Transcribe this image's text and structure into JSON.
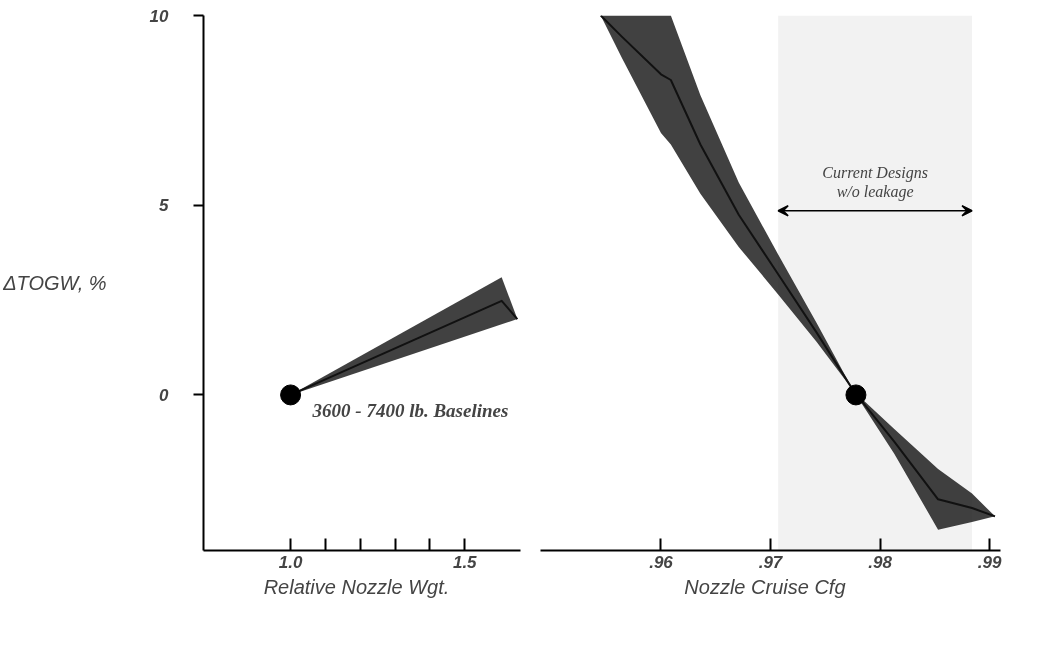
{
  "chart_data": [
    {
      "type": "line",
      "ylabel": "ΔTOGW, %",
      "xlabel": "Relative  Nozzle  Wgt.",
      "xlim": [
        0.75,
        1.66
      ],
      "ylim": [
        -4.1,
        10
      ],
      "yticks": [
        0,
        5,
        10
      ],
      "xticks": [
        {
          "value": 1.0,
          "label": "1.0"
        },
        {
          "value": 1.1,
          "label": null
        },
        {
          "value": 1.2,
          "label": null
        },
        {
          "value": 1.3,
          "label": null
        },
        {
          "value": 1.4,
          "label": null
        },
        {
          "value": 1.5,
          "label": "1.5"
        }
      ],
      "grid": false,
      "series": [
        {
          "color": "#111111",
          "x": [
            1.0,
            1.606,
            1.651
          ],
          "values": [
            0,
            2.48,
            2.0
          ],
          "lower": [
            0,
            1.86,
            2.0
          ],
          "upper": [
            0,
            3.1,
            2.0
          ]
        },
        {
          "type": "scatter",
          "marker": "circle",
          "color": "#000000",
          "x": [
            1.0
          ],
          "values": [
            0
          ]
        }
      ],
      "annotations": [
        {
          "text": "3600 - 7400 lb.  Baselines",
          "x": 1.0,
          "y": 0
        }
      ]
    },
    {
      "type": "line",
      "xlabel": "Nozzle  Cruise  Cfg",
      "xlim": [
        0.949,
        0.991
      ],
      "ylim": [
        -4.1,
        10
      ],
      "yticks": [
        0,
        5,
        10
      ],
      "xticks": [
        {
          "value": 0.96,
          "label": ".96"
        },
        {
          "value": 0.97,
          "label": ".97"
        },
        {
          "value": 0.98,
          "label": ".98"
        },
        {
          "value": 0.99,
          "label": ".99"
        }
      ],
      "tick_labels": "x",
      "grid": false,
      "series": [
        {
          "color": "#111111",
          "x": [
            0.9545,
            0.9564,
            0.96,
            0.9609,
            0.9636,
            0.9671,
            0.9707,
            0.9742,
            0.9776,
            0.9813,
            0.9853,
            0.9884,
            0.9905
          ],
          "values": [
            10,
            9.45,
            8.45,
            8.3,
            6.6,
            4.75,
            3.18,
            1.65,
            0.1,
            -1.23,
            -2.75,
            -2.98,
            -3.2
          ],
          "lower": [
            10,
            8.9,
            6.9,
            6.6,
            5.3,
            3.9,
            2.65,
            1.4,
            0.1,
            -1.55,
            -3.55,
            -3.35,
            -3.2
          ],
          "upper": [
            10,
            10,
            10,
            10,
            7.9,
            5.6,
            3.7,
            1.9,
            0.1,
            -0.9,
            -1.95,
            -2.6,
            -3.2
          ]
        },
        {
          "type": "scatter",
          "marker": "circle",
          "color": "#000000",
          "x": [
            0.9778
          ],
          "values": [
            0
          ]
        }
      ],
      "bands": [
        {
          "axis": "x",
          "from": 0.9707,
          "to": 0.9884,
          "label": "Current Designs w/o leakage",
          "color": "#f2f2f2"
        }
      ]
    }
  ]
}
